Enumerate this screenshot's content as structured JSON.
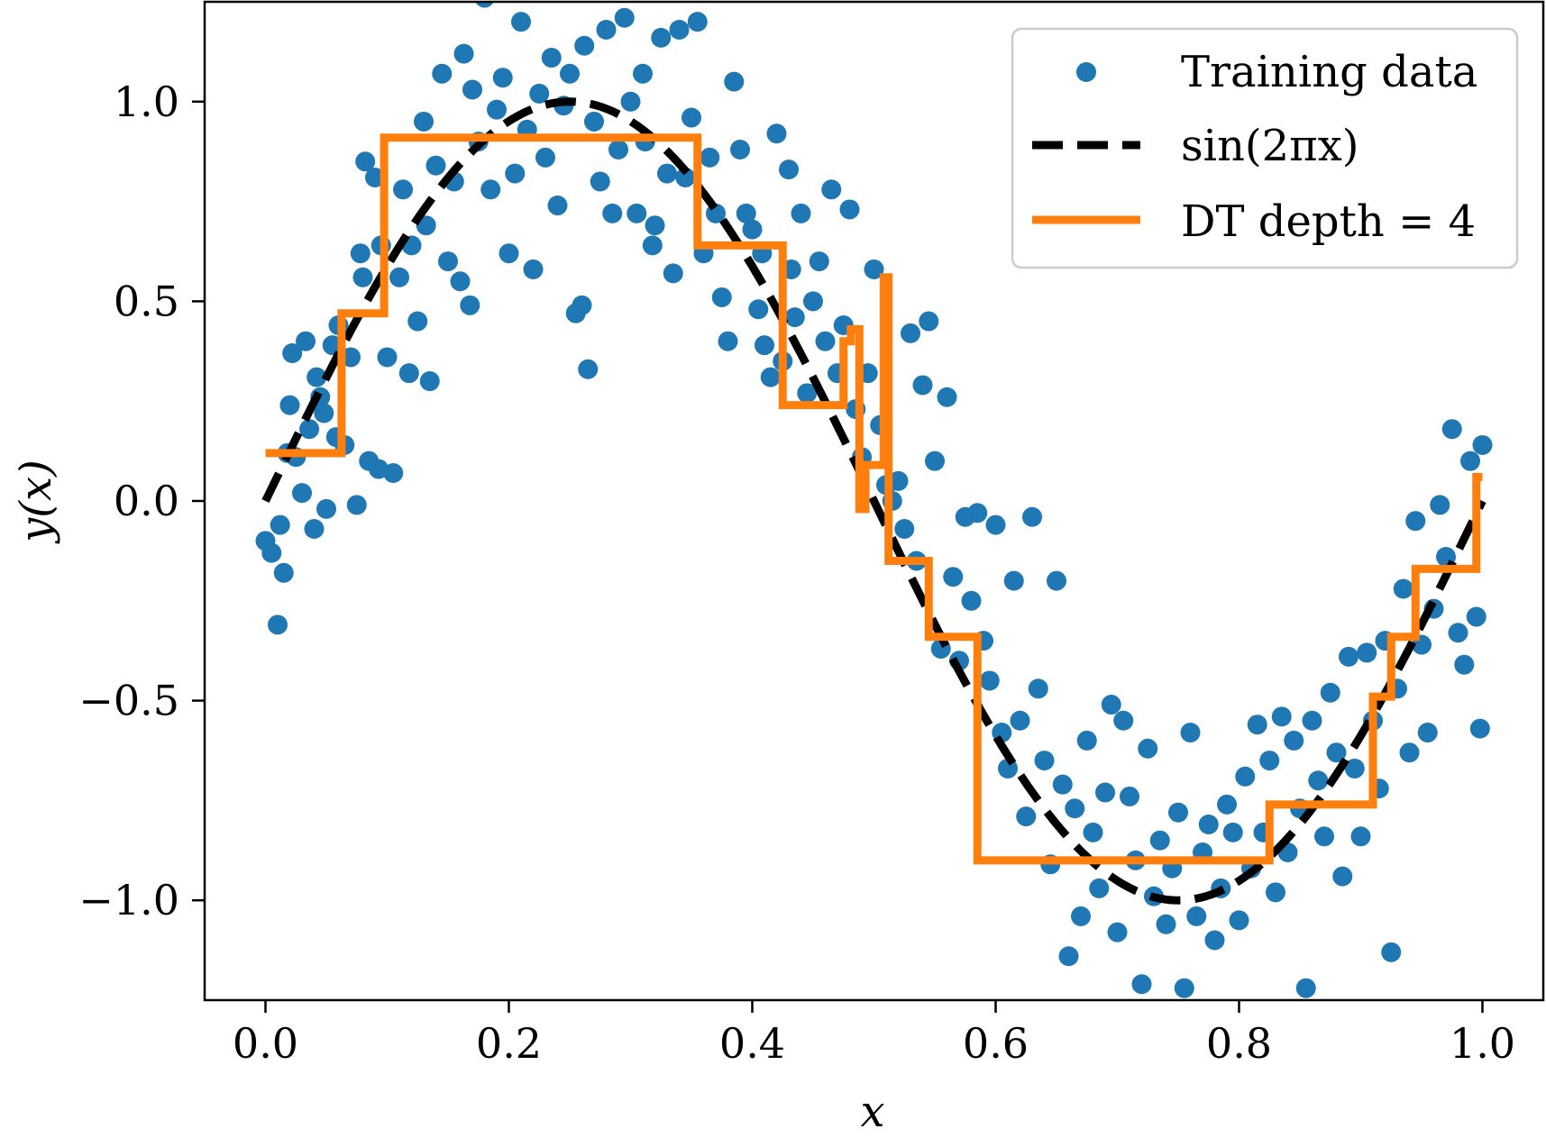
{
  "chart_data": {
    "type": "scatter",
    "title": "",
    "xlabel": "x",
    "ylabel": "y(x)",
    "xlim": [
      -0.05,
      1.05
    ],
    "ylim": [
      -1.25,
      1.25
    ],
    "xticks": [
      0.0,
      0.2,
      0.4,
      0.6,
      0.8,
      1.0
    ],
    "xtick_labels": [
      "0.0",
      "0.2",
      "0.4",
      "0.6",
      "0.8",
      "1.0"
    ],
    "yticks": [
      -1.0,
      -0.5,
      0.0,
      0.5,
      1.0
    ],
    "ytick_labels": [
      "−1.0",
      "−0.5",
      "0.0",
      "0.5",
      "1.0"
    ],
    "grid": false,
    "legend_position": "top-right",
    "legend": [
      {
        "key": "scatter",
        "label": "Training data"
      },
      {
        "key": "sine",
        "label": "sin(2πx)"
      },
      {
        "key": "tree",
        "label": "DT depth = 4"
      }
    ],
    "colors": {
      "scatter": "#1f77b4",
      "sine": "#000000",
      "tree": "#ff7f0e"
    },
    "series": [
      {
        "key": "scatter",
        "kind": "scatter",
        "points": [
          [
            0.0,
            -0.1
          ],
          [
            0.005,
            -0.13
          ],
          [
            0.01,
            -0.31
          ],
          [
            0.012,
            -0.06
          ],
          [
            0.015,
            -0.18
          ],
          [
            0.018,
            0.12
          ],
          [
            0.02,
            0.24
          ],
          [
            0.022,
            0.37
          ],
          [
            0.025,
            0.11
          ],
          [
            0.03,
            0.02
          ],
          [
            0.033,
            0.4
          ],
          [
            0.036,
            0.18
          ],
          [
            0.04,
            -0.07
          ],
          [
            0.042,
            0.31
          ],
          [
            0.045,
            0.26
          ],
          [
            0.048,
            0.22
          ],
          [
            0.05,
            -0.02
          ],
          [
            0.055,
            0.39
          ],
          [
            0.058,
            0.16
          ],
          [
            0.06,
            0.44
          ],
          [
            0.065,
            0.14
          ],
          [
            0.07,
            0.36
          ],
          [
            0.075,
            -0.01
          ],
          [
            0.078,
            0.62
          ],
          [
            0.08,
            0.56
          ],
          [
            0.082,
            0.85
          ],
          [
            0.085,
            0.1
          ],
          [
            0.09,
            0.81
          ],
          [
            0.093,
            0.08
          ],
          [
            0.095,
            0.64
          ],
          [
            0.1,
            0.36
          ],
          [
            0.105,
            0.07
          ],
          [
            0.11,
            0.56
          ],
          [
            0.113,
            0.78
          ],
          [
            0.118,
            0.32
          ],
          [
            0.12,
            0.64
          ],
          [
            0.125,
            0.45
          ],
          [
            0.13,
            0.95
          ],
          [
            0.132,
            0.69
          ],
          [
            0.135,
            0.3
          ],
          [
            0.14,
            0.84
          ],
          [
            0.145,
            1.07
          ],
          [
            0.15,
            0.6
          ],
          [
            0.155,
            0.8
          ],
          [
            0.16,
            0.55
          ],
          [
            0.163,
            1.12
          ],
          [
            0.168,
            0.49
          ],
          [
            0.17,
            1.03
          ],
          [
            0.175,
            0.9
          ],
          [
            0.18,
            1.26
          ],
          [
            0.185,
            0.78
          ],
          [
            0.19,
            0.98
          ],
          [
            0.195,
            1.06
          ],
          [
            0.2,
            0.62
          ],
          [
            0.205,
            0.82
          ],
          [
            0.21,
            1.2
          ],
          [
            0.215,
            0.93
          ],
          [
            0.22,
            0.58
          ],
          [
            0.225,
            1.02
          ],
          [
            0.23,
            0.86
          ],
          [
            0.235,
            1.11
          ],
          [
            0.24,
            0.74
          ],
          [
            0.245,
            0.99
          ],
          [
            0.25,
            1.07
          ],
          [
            0.255,
            0.47
          ],
          [
            0.26,
            0.49
          ],
          [
            0.262,
            1.14
          ],
          [
            0.265,
            0.33
          ],
          [
            0.27,
            0.95
          ],
          [
            0.275,
            0.8
          ],
          [
            0.28,
            1.18
          ],
          [
            0.285,
            0.72
          ],
          [
            0.29,
            0.88
          ],
          [
            0.295,
            1.21
          ],
          [
            0.3,
            1.0
          ],
          [
            0.305,
            0.72
          ],
          [
            0.31,
            1.07
          ],
          [
            0.312,
            0.9
          ],
          [
            0.318,
            0.64
          ],
          [
            0.32,
            0.69
          ],
          [
            0.325,
            1.16
          ],
          [
            0.33,
            0.82
          ],
          [
            0.335,
            0.57
          ],
          [
            0.34,
            1.18
          ],
          [
            0.345,
            0.81
          ],
          [
            0.35,
            0.96
          ],
          [
            0.355,
            1.2
          ],
          [
            0.36,
            0.62
          ],
          [
            0.365,
            0.86
          ],
          [
            0.37,
            0.72
          ],
          [
            0.375,
            0.51
          ],
          [
            0.38,
            0.4
          ],
          [
            0.385,
            1.05
          ],
          [
            0.39,
            0.88
          ],
          [
            0.395,
            0.72
          ],
          [
            0.4,
            0.68
          ],
          [
            0.405,
            0.48
          ],
          [
            0.408,
            0.62
          ],
          [
            0.41,
            0.39
          ],
          [
            0.415,
            0.31
          ],
          [
            0.42,
            0.92
          ],
          [
            0.425,
            0.35
          ],
          [
            0.43,
            0.83
          ],
          [
            0.432,
            0.58
          ],
          [
            0.435,
            0.46
          ],
          [
            0.44,
            0.72
          ],
          [
            0.445,
            0.27
          ],
          [
            0.45,
            0.5
          ],
          [
            0.455,
            0.6
          ],
          [
            0.46,
            0.4
          ],
          [
            0.465,
            0.78
          ],
          [
            0.47,
            0.32
          ],
          [
            0.475,
            0.44
          ],
          [
            0.48,
            0.73
          ],
          [
            0.485,
            0.23
          ],
          [
            0.49,
            0.11
          ],
          [
            0.495,
            0.32
          ],
          [
            0.5,
            0.58
          ],
          [
            0.505,
            0.19
          ],
          [
            0.51,
            0.04
          ],
          [
            0.515,
            0.0
          ],
          [
            0.52,
            0.05
          ],
          [
            0.525,
            -0.07
          ],
          [
            0.53,
            0.42
          ],
          [
            0.535,
            -0.15
          ],
          [
            0.54,
            0.29
          ],
          [
            0.545,
            0.45
          ],
          [
            0.55,
            0.1
          ],
          [
            0.555,
            -0.37
          ],
          [
            0.56,
            0.26
          ],
          [
            0.565,
            -0.19
          ],
          [
            0.57,
            -0.4
          ],
          [
            0.575,
            -0.04
          ],
          [
            0.58,
            -0.25
          ],
          [
            0.585,
            -0.03
          ],
          [
            0.59,
            -0.35
          ],
          [
            0.595,
            -0.45
          ],
          [
            0.6,
            -0.06
          ],
          [
            0.605,
            -0.58
          ],
          [
            0.61,
            -0.67
          ],
          [
            0.615,
            -0.2
          ],
          [
            0.62,
            -0.55
          ],
          [
            0.625,
            -0.79
          ],
          [
            0.63,
            -0.04
          ],
          [
            0.635,
            -0.47
          ],
          [
            0.64,
            -0.65
          ],
          [
            0.645,
            -0.91
          ],
          [
            0.65,
            -0.2
          ],
          [
            0.655,
            -0.71
          ],
          [
            0.66,
            -1.14
          ],
          [
            0.665,
            -0.77
          ],
          [
            0.67,
            -1.04
          ],
          [
            0.675,
            -0.6
          ],
          [
            0.68,
            -0.83
          ],
          [
            0.685,
            -0.97
          ],
          [
            0.69,
            -0.73
          ],
          [
            0.695,
            -0.51
          ],
          [
            0.7,
            -1.08
          ],
          [
            0.705,
            -0.55
          ],
          [
            0.71,
            -0.74
          ],
          [
            0.715,
            -0.9
          ],
          [
            0.72,
            -1.21
          ],
          [
            0.725,
            -0.62
          ],
          [
            0.73,
            -0.99
          ],
          [
            0.735,
            -0.85
          ],
          [
            0.74,
            -1.06
          ],
          [
            0.745,
            -0.92
          ],
          [
            0.75,
            -0.78
          ],
          [
            0.755,
            -1.22
          ],
          [
            0.76,
            -0.58
          ],
          [
            0.765,
            -1.04
          ],
          [
            0.77,
            -0.88
          ],
          [
            0.775,
            -0.81
          ],
          [
            0.78,
            -1.1
          ],
          [
            0.785,
            -0.97
          ],
          [
            0.79,
            -0.76
          ],
          [
            0.795,
            -0.83
          ],
          [
            0.8,
            -1.05
          ],
          [
            0.805,
            -0.69
          ],
          [
            0.81,
            -0.92
          ],
          [
            0.815,
            -0.56
          ],
          [
            0.82,
            -0.83
          ],
          [
            0.825,
            -0.65
          ],
          [
            0.83,
            -0.98
          ],
          [
            0.835,
            -0.54
          ],
          [
            0.84,
            -0.88
          ],
          [
            0.845,
            -0.6
          ],
          [
            0.85,
            -0.77
          ],
          [
            0.855,
            -1.22
          ],
          [
            0.86,
            -0.55
          ],
          [
            0.865,
            -0.7
          ],
          [
            0.87,
            -0.84
          ],
          [
            0.875,
            -0.48
          ],
          [
            0.88,
            -0.63
          ],
          [
            0.885,
            -0.94
          ],
          [
            0.89,
            -0.39
          ],
          [
            0.895,
            -0.67
          ],
          [
            0.9,
            -0.84
          ],
          [
            0.905,
            -0.38
          ],
          [
            0.91,
            -0.55
          ],
          [
            0.915,
            -0.72
          ],
          [
            0.92,
            -0.35
          ],
          [
            0.925,
            -1.13
          ],
          [
            0.93,
            -0.47
          ],
          [
            0.935,
            -0.22
          ],
          [
            0.94,
            -0.63
          ],
          [
            0.945,
            -0.05
          ],
          [
            0.95,
            -0.36
          ],
          [
            0.955,
            -0.58
          ],
          [
            0.96,
            -0.27
          ],
          [
            0.965,
            -0.01
          ],
          [
            0.97,
            -0.14
          ],
          [
            0.975,
            0.18
          ],
          [
            0.98,
            -0.33
          ],
          [
            0.985,
            -0.41
          ],
          [
            0.99,
            0.1
          ],
          [
            0.995,
            -0.29
          ],
          [
            1.0,
            0.14
          ],
          [
            0.998,
            -0.57
          ]
        ]
      },
      {
        "key": "sine",
        "kind": "function",
        "label": "sin(2πx)"
      },
      {
        "key": "tree",
        "kind": "step",
        "x": [
          0.0,
          0.0625,
          0.0625,
          0.0975,
          0.0975,
          0.355,
          0.355,
          0.425,
          0.425,
          0.475,
          0.475,
          0.481,
          0.481,
          0.488,
          0.488,
          0.493,
          0.493,
          0.508,
          0.508,
          0.512,
          0.512,
          0.516,
          0.516,
          0.545,
          0.545,
          0.585,
          0.585,
          0.825,
          0.825,
          0.91,
          0.91,
          0.925,
          0.925,
          0.945,
          0.945,
          0.995,
          0.995,
          1.0
        ],
        "y": [
          0.12,
          0.12,
          0.47,
          0.47,
          0.91,
          0.91,
          0.64,
          0.64,
          0.24,
          0.24,
          0.4,
          0.4,
          0.43,
          0.43,
          -0.02,
          -0.02,
          0.09,
          0.09,
          0.56,
          0.56,
          -0.15,
          -0.15,
          -0.15,
          -0.15,
          -0.34,
          -0.34,
          -0.9,
          -0.9,
          -0.76,
          -0.76,
          -0.49,
          -0.49,
          -0.34,
          -0.34,
          -0.17,
          -0.17,
          0.06,
          0.06
        ]
      }
    ]
  }
}
